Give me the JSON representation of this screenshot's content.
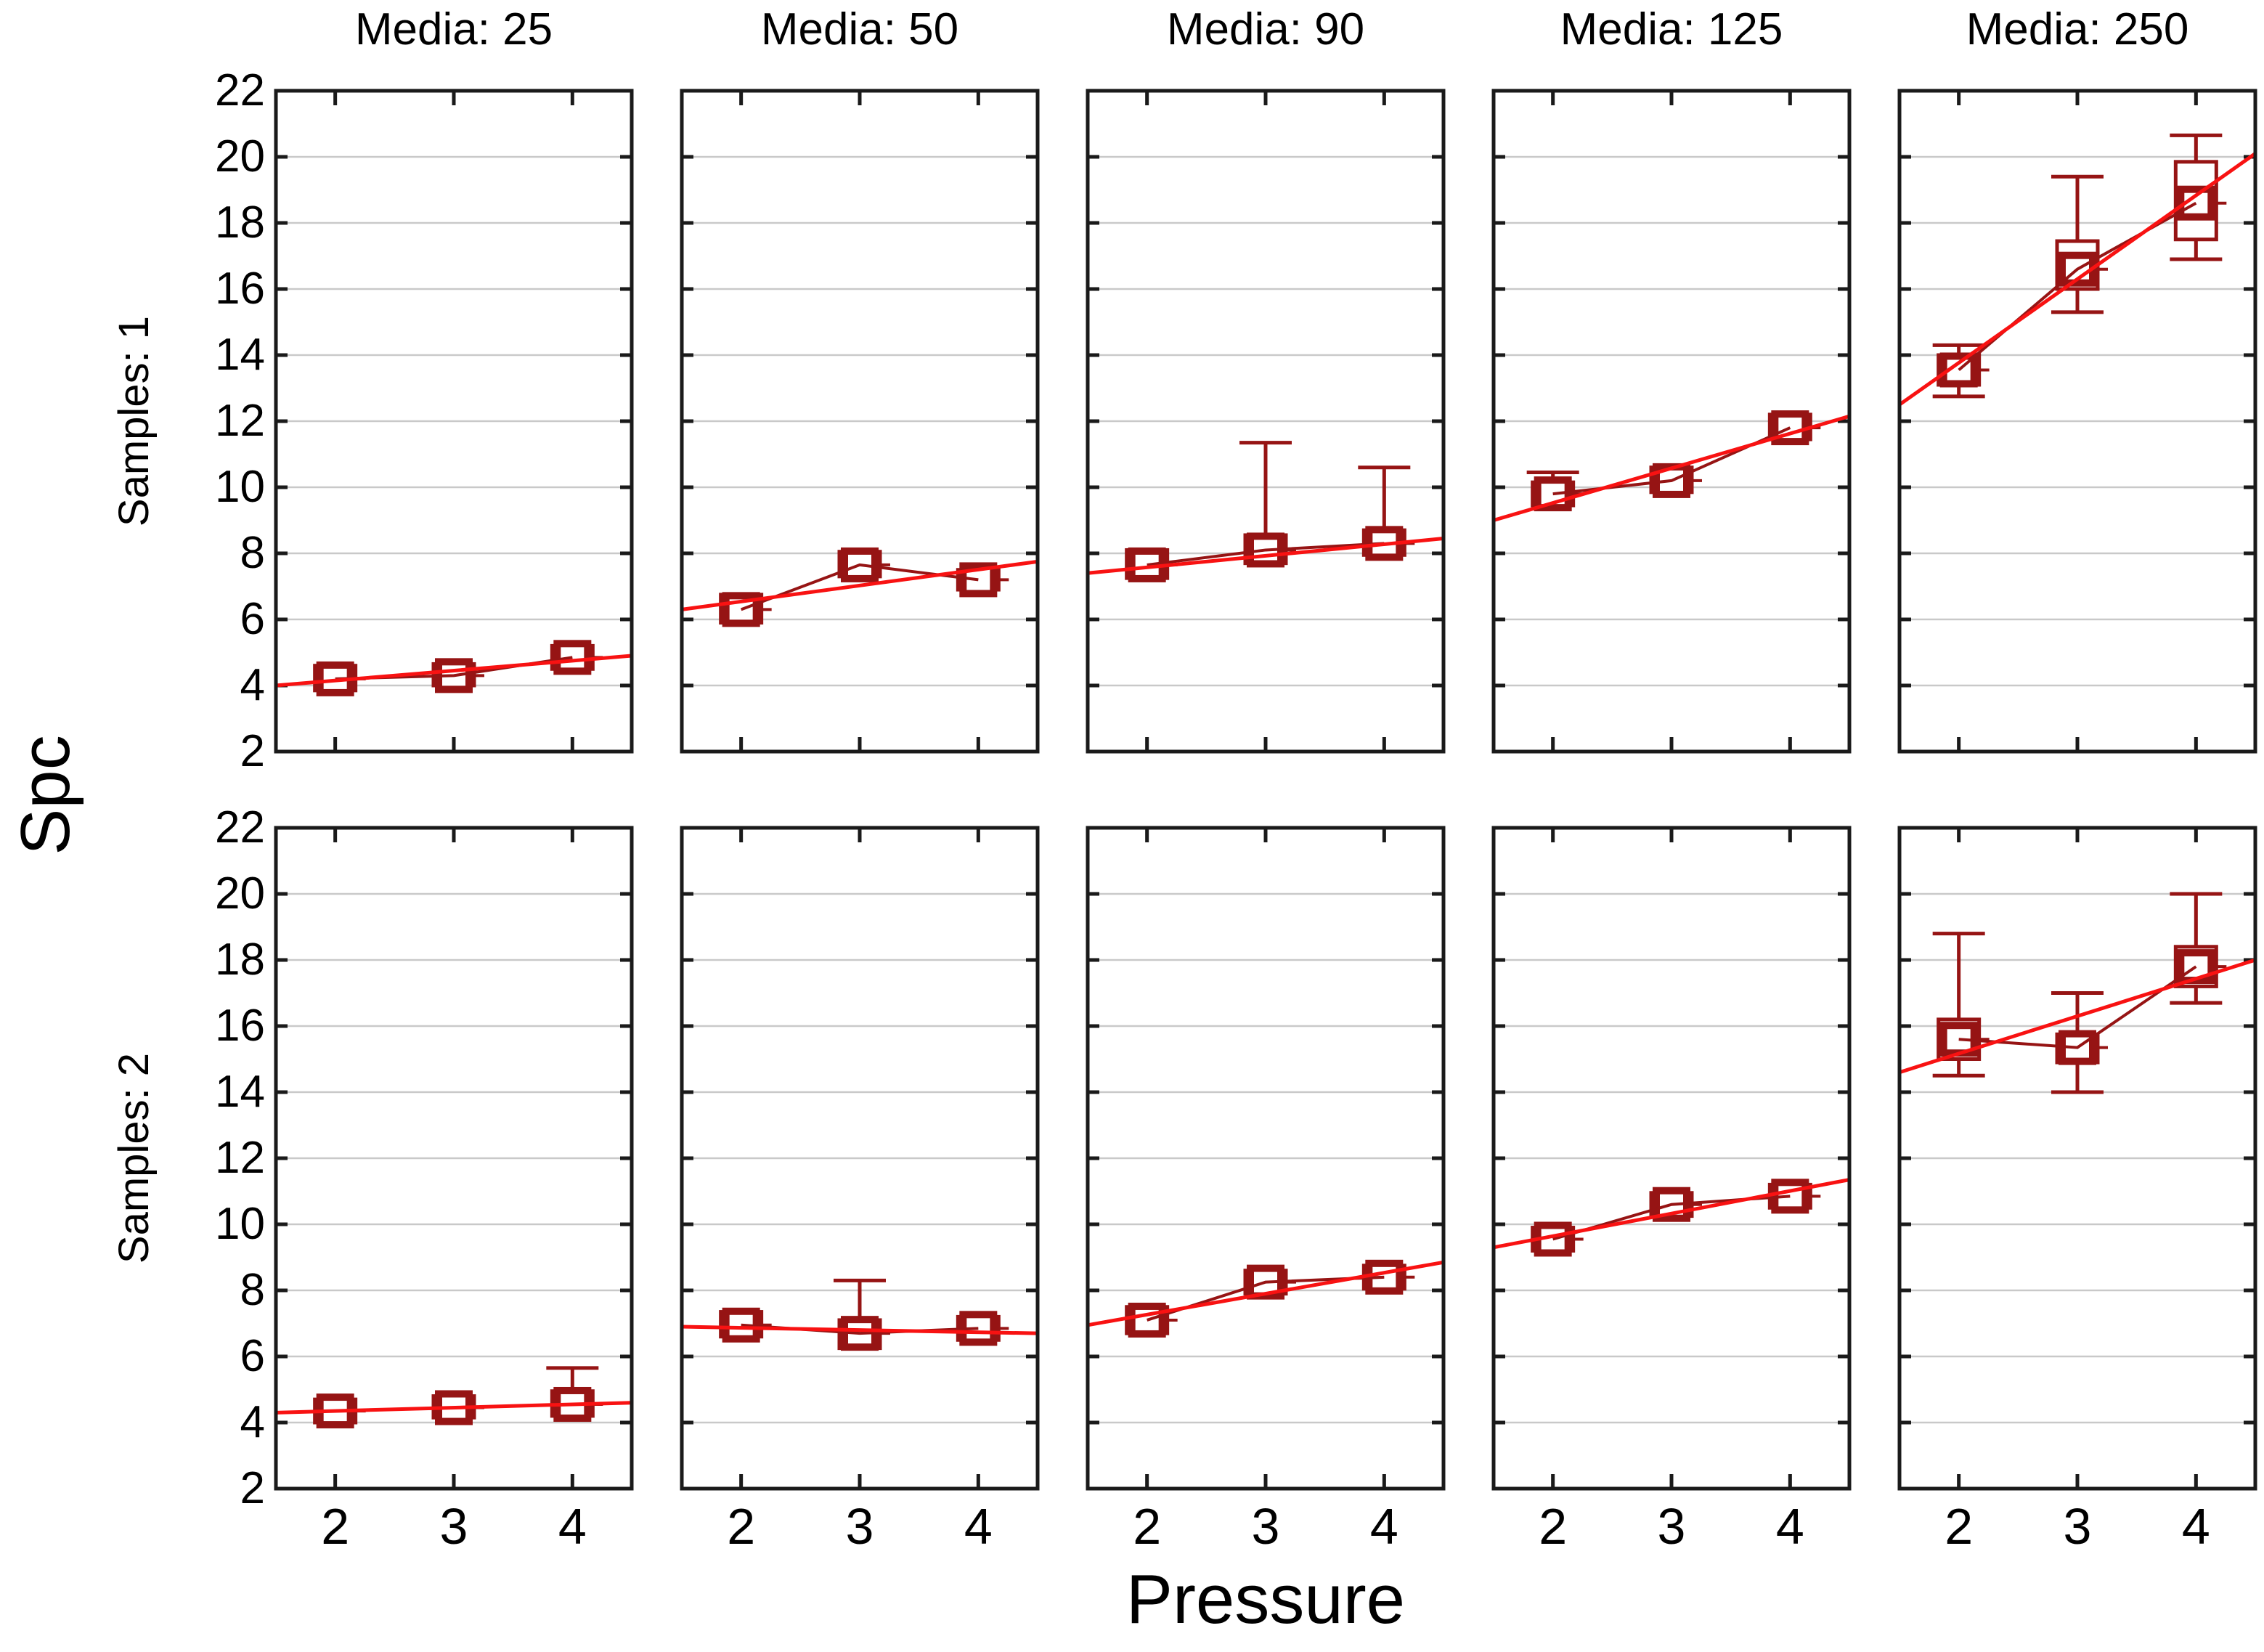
{
  "figure": {
    "xlabel": "Pressure",
    "ylabel": "Spc"
  },
  "colors": {
    "box_dark_red": "#961414",
    "fit_line_red": "#F81212",
    "gridline_gray": "#C9C9C9",
    "frame_black": "#1A1A1A",
    "text_black": "#000000",
    "background": "#FFFFFF"
  },
  "chart_data": {
    "type": "box-whisker-trellis",
    "xlabel": "Pressure",
    "ylabel": "Spc",
    "col_titles": [
      "Media: 25",
      "Media: 50",
      "Media: 90",
      "Media: 125",
      "Media: 250"
    ],
    "row_titles": [
      "Samples: 1",
      "Samples: 2"
    ],
    "x_ticks": [
      2,
      3,
      4
    ],
    "y_ticks": [
      22,
      20,
      18,
      16,
      14,
      12,
      10,
      8,
      6,
      4,
      2
    ],
    "x_range": [
      1.5,
      4.5
    ],
    "y_range": [
      2,
      22
    ],
    "grid": "horizontal",
    "marker": "mean-square with SE box and whiskers, dark-red mean connector, red linear fit",
    "panels": [
      {
        "row": "Samples: 1",
        "col": "Media: 25",
        "points": [
          {
            "x": 2,
            "mean": 4.2,
            "box": [
              3.85,
              4.6
            ],
            "whisker": null
          },
          {
            "x": 3,
            "mean": 4.3,
            "box": [
              4.0,
              4.65
            ],
            "whisker": null
          },
          {
            "x": 4,
            "mean": 4.85,
            "box": [
              4.5,
              5.2
            ],
            "whisker": null
          }
        ],
        "fit": [
          4.0,
          4.9
        ]
      },
      {
        "row": "Samples: 1",
        "col": "Media: 50",
        "points": [
          {
            "x": 2,
            "mean": 6.3,
            "box": [
              5.9,
              6.75
            ],
            "whisker": null
          },
          {
            "x": 3,
            "mean": 7.65,
            "box": [
              7.3,
              8.05
            ],
            "whisker": null
          },
          {
            "x": 4,
            "mean": 7.2,
            "box": [
              6.9,
              7.5
            ],
            "whisker": null
          }
        ],
        "fit": [
          6.3,
          7.75
        ]
      },
      {
        "row": "Samples: 1",
        "col": "Media: 90",
        "points": [
          {
            "x": 2,
            "mean": 7.65,
            "box": [
              7.25,
              8.1
            ],
            "whisker": null
          },
          {
            "x": 3,
            "mean": 8.1,
            "box": [
              7.7,
              8.55
            ],
            "whisker": [
              7.7,
              11.35
            ]
          },
          {
            "x": 4,
            "mean": 8.3,
            "box": [
              7.95,
              8.7
            ],
            "whisker": [
              7.95,
              10.6
            ]
          }
        ],
        "fit": [
          7.4,
          8.45
        ]
      },
      {
        "row": "Samples: 1",
        "col": "Media: 125",
        "points": [
          {
            "x": 2,
            "mean": 9.8,
            "box": [
              9.45,
              10.15
            ],
            "whisker": [
              9.45,
              10.45
            ]
          },
          {
            "x": 3,
            "mean": 10.2,
            "box": [
              9.85,
              10.6
            ],
            "whisker": null
          },
          {
            "x": 4,
            "mean": 11.8,
            "box": [
              11.45,
              12.2
            ],
            "whisker": null
          }
        ],
        "fit": [
          9.0,
          12.15
        ]
      },
      {
        "row": "Samples: 1",
        "col": "Media: 250",
        "points": [
          {
            "x": 2,
            "mean": 13.55,
            "box": [
              13.1,
              14.0
            ],
            "whisker": [
              12.75,
              14.3
            ]
          },
          {
            "x": 3,
            "mean": 16.6,
            "box": [
              16.0,
              17.45
            ],
            "whisker": [
              15.3,
              19.4
            ]
          },
          {
            "x": 4,
            "mean": 18.6,
            "box": [
              17.5,
              19.85
            ],
            "whisker": [
              16.9,
              20.65
            ]
          }
        ],
        "fit": [
          12.5,
          20.1
        ]
      },
      {
        "row": "Samples: 2",
        "col": "Media: 25",
        "points": [
          {
            "x": 2,
            "mean": 4.35,
            "box": [
              4.0,
              4.7
            ],
            "whisker": null
          },
          {
            "x": 3,
            "mean": 4.45,
            "box": [
              4.15,
              4.8
            ],
            "whisker": null
          },
          {
            "x": 4,
            "mean": 4.55,
            "box": [
              4.2,
              4.95
            ],
            "whisker": [
              4.2,
              5.65
            ]
          }
        ],
        "fit": [
          4.3,
          4.6
        ]
      },
      {
        "row": "Samples: 2",
        "col": "Media: 50",
        "points": [
          {
            "x": 2,
            "mean": 6.95,
            "box": [
              6.6,
              7.35
            ],
            "whisker": null
          },
          {
            "x": 3,
            "mean": 6.7,
            "box": [
              6.25,
              7.1
            ],
            "whisker": [
              6.25,
              8.3
            ]
          },
          {
            "x": 4,
            "mean": 6.85,
            "box": [
              6.5,
              7.2
            ],
            "whisker": null
          }
        ],
        "fit": [
          6.9,
          6.7
        ]
      },
      {
        "row": "Samples: 2",
        "col": "Media: 90",
        "points": [
          {
            "x": 2,
            "mean": 7.1,
            "box": [
              6.7,
              7.5
            ],
            "whisker": null
          },
          {
            "x": 3,
            "mean": 8.25,
            "box": [
              7.9,
              8.6
            ],
            "whisker": null
          },
          {
            "x": 4,
            "mean": 8.4,
            "box": [
              8.05,
              8.75
            ],
            "whisker": null
          }
        ],
        "fit": [
          6.95,
          8.85
        ]
      },
      {
        "row": "Samples: 2",
        "col": "Media: 125",
        "points": [
          {
            "x": 2,
            "mean": 9.55,
            "box": [
              9.2,
              9.9
            ],
            "whisker": null
          },
          {
            "x": 3,
            "mean": 10.6,
            "box": [
              10.25,
              10.95
            ],
            "whisker": null
          },
          {
            "x": 4,
            "mean": 10.85,
            "box": [
              10.5,
              11.2
            ],
            "whisker": null
          }
        ],
        "fit": [
          9.3,
          11.35
        ]
      },
      {
        "row": "Samples: 2",
        "col": "Media: 250",
        "points": [
          {
            "x": 2,
            "mean": 15.6,
            "box": [
              15.0,
              16.2
            ],
            "whisker": [
              14.5,
              18.8
            ]
          },
          {
            "x": 3,
            "mean": 15.35,
            "box": [
              14.9,
              15.75
            ],
            "whisker": [
              14.0,
              17.0
            ]
          },
          {
            "x": 4,
            "mean": 17.8,
            "box": [
              17.2,
              18.4
            ],
            "whisker": [
              16.7,
              20.0
            ]
          }
        ],
        "fit": [
          14.6,
          18.0
        ]
      }
    ]
  }
}
